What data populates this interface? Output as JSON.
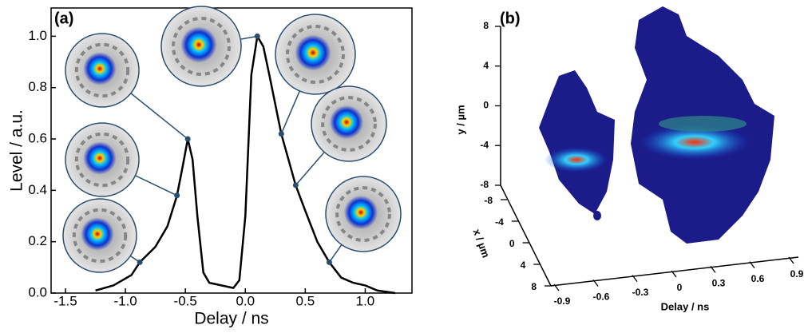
{
  "chart_data": [
    {
      "type": "line",
      "label": "(a)",
      "x_label": "Delay / ns",
      "y_label": "Level / a.u.",
      "color": "#000000",
      "x": [
        -1.25,
        -1.1,
        -0.95,
        -0.88,
        -0.75,
        -0.65,
        -0.57,
        -0.52,
        -0.48,
        -0.44,
        -0.4,
        -0.35,
        -0.3,
        -0.2,
        -0.1,
        -0.05,
        0,
        0.05,
        0.1,
        0.15,
        0.2,
        0.3,
        0.42,
        0.5,
        0.6,
        0.7,
        0.8,
        0.9,
        1.0,
        1.1,
        1.25
      ],
      "values": [
        0.01,
        0.03,
        0.07,
        0.12,
        0.18,
        0.26,
        0.38,
        0.5,
        0.6,
        0.52,
        0.3,
        0.08,
        0.04,
        0.03,
        0.02,
        0.05,
        0.3,
        0.85,
        1.0,
        0.96,
        0.85,
        0.62,
        0.42,
        0.32,
        0.2,
        0.12,
        0.06,
        0.04,
        0.03,
        0.01,
        0.0
      ],
      "points": {
        "x": [
          -0.48,
          -0.57,
          -0.88,
          0.1,
          0.3,
          0.42,
          0.7
        ],
        "values": [
          0.6,
          0.38,
          0.12,
          1.0,
          0.62,
          0.42,
          0.12
        ],
        "color": "#2a4d6e"
      },
      "xlim": [
        -1.62,
        1.39
      ],
      "ylim": [
        0,
        1.11
      ],
      "xticks": [
        -1.5,
        {
          "value": -1.0,
          "label": "-1.0"
        },
        -0.5,
        {
          "value": 0,
          "label": "0.0"
        },
        0.5,
        {
          "value": 1.0,
          "label": "1.0"
        }
      ],
      "yticks": [
        {
          "value": 0,
          "label": "0.0"
        },
        0.2,
        0.4,
        0.6,
        0.8,
        {
          "value": 1.0,
          "label": "1.0"
        }
      ]
    },
    {
      "type": "volume3d",
      "label": "(b)",
      "x_label": "Delay / ns",
      "y_label": "x / µm",
      "z_label": "y / µm",
      "xlim": [
        -0.9,
        0.9
      ],
      "ylim": [
        -8,
        8
      ],
      "zlim": [
        -8,
        8
      ],
      "xticks": [
        -0.9,
        -0.6,
        -0.3,
        0,
        0.3,
        0.6,
        0.9
      ],
      "yticks": [
        -8,
        -4,
        0,
        4,
        8
      ],
      "zticks": [
        8,
        4,
        0,
        -4,
        -8
      ]
    }
  ]
}
